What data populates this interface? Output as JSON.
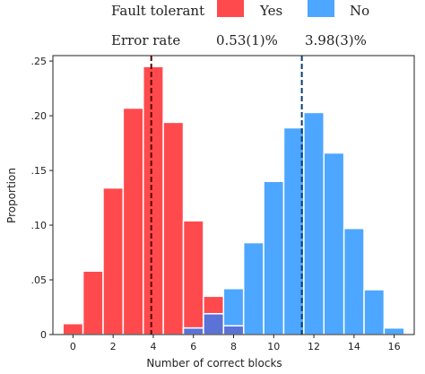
{
  "chart_data": {
    "type": "bar",
    "xlabel": "Number of correct blocks",
    "ylabel": "Proportion",
    "xlim": [
      -1,
      17
    ],
    "ylim": [
      0,
      0.255
    ],
    "xticks": [
      0,
      2,
      4,
      6,
      8,
      10,
      12,
      14,
      16
    ],
    "xtick_labels": [
      "0",
      "2",
      "4",
      "6",
      "8",
      "10",
      "12",
      "14",
      "16"
    ],
    "yticks": [
      0,
      0.05,
      0.1,
      0.15,
      0.2,
      0.25
    ],
    "ytick_labels": [
      "0",
      ".05",
      ".10",
      ".15",
      ".20",
      ".25"
    ],
    "legend": {
      "header_label": "Fault tolerant",
      "row_label": "Error rate",
      "entries": [
        {
          "label": "Yes",
          "value": "0.53(1)%",
          "color": "#ff4a4d"
        },
        {
          "label": "No",
          "value": "3.98(3)%",
          "color": "#4da6ff"
        }
      ],
      "placement": "top"
    },
    "series": [
      {
        "name": "Yes",
        "color": "#ff4a4d",
        "x": [
          0,
          1,
          2,
          3,
          4,
          5,
          6,
          7,
          8
        ],
        "values": [
          0.01,
          0.058,
          0.134,
          0.207,
          0.245,
          0.194,
          0.104,
          0.035,
          0.008
        ]
      },
      {
        "name": "No",
        "color": "#4da6ff",
        "x": [
          6,
          7,
          8,
          9,
          10,
          11,
          12,
          13,
          14,
          15,
          16
        ],
        "values": [
          0.006,
          0.019,
          0.042,
          0.084,
          0.14,
          0.189,
          0.203,
          0.166,
          0.097,
          0.041,
          0.006
        ]
      }
    ],
    "mean_lines": [
      {
        "series": "Yes",
        "x": 3.9,
        "color": "#5a0000",
        "style": "dashed"
      },
      {
        "series": "No",
        "x": 11.4,
        "color": "#0a3d7a",
        "style": "dashed"
      }
    ],
    "overlap_color": "#5b72d6",
    "grid": false
  }
}
